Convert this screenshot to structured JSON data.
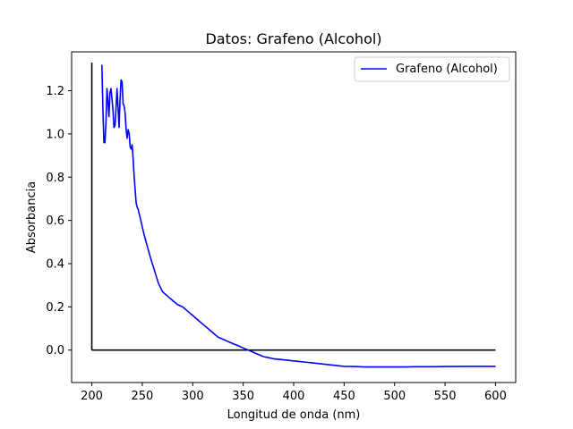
{
  "chart_data": {
    "type": "line",
    "title": "Datos: Grafeno (Alcohol)",
    "xlabel": "Longitud de onda (nm)",
    "ylabel": "Absorbancia",
    "xlim": [
      180,
      620
    ],
    "ylim": [
      -0.15,
      1.38
    ],
    "xticks": [
      200,
      250,
      300,
      350,
      400,
      450,
      500,
      550,
      600
    ],
    "xtick_labels": [
      "200",
      "250",
      "300",
      "350",
      "400",
      "450",
      "500",
      "550",
      "600"
    ],
    "yticks": [
      0.0,
      0.2,
      0.4,
      0.6,
      0.8,
      1.0,
      1.2
    ],
    "ytick_labels": [
      "0.0",
      "0.2",
      "0.4",
      "0.6",
      "0.8",
      "1.0",
      "1.2"
    ],
    "grid": false,
    "legend": "top-right",
    "series": [
      {
        "name": "Grafeno (Alcohol)",
        "color": "#0000ff",
        "x": [
          210,
          211,
          212,
          213,
          214,
          215,
          216,
          217,
          218,
          219,
          220,
          221,
          222,
          223,
          224,
          225,
          226,
          227,
          228,
          229,
          230,
          231,
          232,
          233,
          234,
          235,
          236,
          237,
          238,
          239,
          240,
          241,
          242,
          243,
          244,
          245,
          246,
          247,
          248,
          249,
          250,
          252,
          255,
          258,
          262,
          266,
          270,
          275,
          280,
          285,
          290,
          295,
          300,
          305,
          310,
          315,
          320,
          325,
          330,
          335,
          340,
          345,
          350,
          355,
          360,
          365,
          370,
          375,
          380,
          390,
          400,
          410,
          420,
          430,
          440,
          450,
          460,
          470,
          480,
          490,
          500,
          510,
          520,
          530,
          540,
          550,
          560,
          570,
          580,
          590,
          600
        ],
        "y": [
          1.32,
          1.12,
          0.96,
          0.96,
          1.05,
          1.21,
          1.15,
          1.08,
          1.19,
          1.21,
          1.16,
          1.11,
          1.03,
          1.04,
          1.12,
          1.21,
          1.12,
          1.03,
          1.16,
          1.25,
          1.24,
          1.14,
          1.13,
          1.1,
          1.02,
          0.98,
          1.02,
          1.0,
          0.94,
          0.93,
          0.95,
          0.88,
          0.8,
          0.74,
          0.68,
          0.66,
          0.65,
          0.63,
          0.61,
          0.59,
          0.57,
          0.53,
          0.48,
          0.43,
          0.37,
          0.31,
          0.27,
          0.25,
          0.23,
          0.21,
          0.2,
          0.18,
          0.16,
          0.14,
          0.12,
          0.1,
          0.08,
          0.06,
          0.05,
          0.04,
          0.03,
          0.02,
          0.01,
          0.0,
          -0.01,
          -0.02,
          -0.03,
          -0.035,
          -0.04,
          -0.045,
          -0.05,
          -0.055,
          -0.06,
          -0.065,
          -0.07,
          -0.075,
          -0.076,
          -0.078,
          -0.078,
          -0.078,
          -0.078,
          -0.078,
          -0.077,
          -0.077,
          -0.077,
          -0.076,
          -0.076,
          -0.075,
          -0.075,
          -0.075,
          -0.075
        ]
      }
    ],
    "reference_lines": [
      {
        "orientation": "horizontal",
        "y": 0.0,
        "x_from": 200,
        "x_to": 600,
        "color": "#000000"
      },
      {
        "orientation": "vertical",
        "x": 200,
        "y_from": 0.0,
        "y_to": 1.33,
        "color": "#000000"
      }
    ]
  }
}
